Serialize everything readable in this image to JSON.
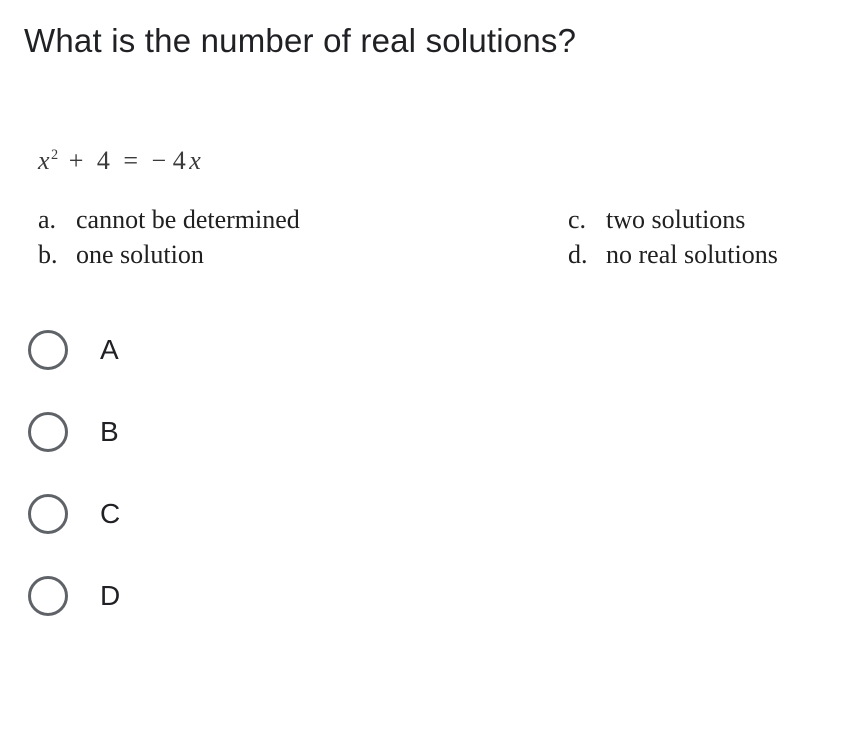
{
  "question": {
    "title": "What is the number of real solutions?",
    "equation": {
      "lhs_var": "x",
      "lhs_exp": "2",
      "lhs_plus": "+",
      "lhs_const": "4",
      "eq": "=",
      "rhs_sign": "−",
      "rhs_coef": "4",
      "rhs_var": "x"
    }
  },
  "answer_key": {
    "a": {
      "letter": "a.",
      "text": "cannot be determined"
    },
    "b": {
      "letter": "b.",
      "text": "one solution"
    },
    "c": {
      "letter": "c.",
      "text": "two solutions"
    },
    "d": {
      "letter": "d.",
      "text": "no real solutions"
    }
  },
  "options": {
    "A": "A",
    "B": "B",
    "C": "C",
    "D": "D"
  },
  "colors": {
    "text": "#202124",
    "radio_border": "#5f6368",
    "background": "#ffffff"
  }
}
